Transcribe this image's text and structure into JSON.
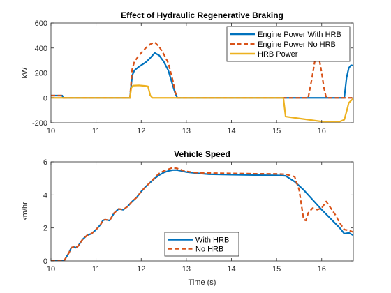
{
  "colors": {
    "blue": "#0072BD",
    "orange": "#D95319",
    "yellow": "#EDB120",
    "axis": "#262626"
  },
  "chart_data": [
    {
      "type": "line",
      "title": "Effect of Hydraulic Regenerative Braking",
      "xlabel": "",
      "ylabel": "kW",
      "xlim": [
        10,
        16.7
      ],
      "ylim": [
        -200,
        600
      ],
      "xticks": [
        10,
        11,
        12,
        13,
        14,
        15,
        16
      ],
      "yticks": [
        -200,
        0,
        200,
        400,
        600
      ],
      "legend_position": "top-right",
      "series": [
        {
          "name": "Engine Power With HRB",
          "color": "#0072BD",
          "style": "solid",
          "x": [
            10,
            10.25,
            10.27,
            11.75,
            11.8,
            11.85,
            11.95,
            12.1,
            12.2,
            12.3,
            12.4,
            12.5,
            12.6,
            12.7,
            12.75,
            12.8,
            15.1,
            16.5,
            16.55,
            16.6,
            16.65,
            16.7
          ],
          "y": [
            18,
            18,
            0,
            0,
            180,
            220,
            250,
            285,
            320,
            360,
            340,
            290,
            220,
            100,
            40,
            0,
            0,
            0,
            160,
            240,
            262,
            258
          ]
        },
        {
          "name": "Engine Power No HRB",
          "color": "#D95319",
          "style": "dashed",
          "x": [
            10,
            10.25,
            10.27,
            11.75,
            11.8,
            11.85,
            11.95,
            12.1,
            12.2,
            12.3,
            12.4,
            12.5,
            12.6,
            12.7,
            12.75,
            12.8,
            15.7,
            15.78,
            15.85,
            15.9,
            15.95,
            16.0,
            16.05,
            16.1,
            16.7
          ],
          "y": [
            18,
            18,
            0,
            0,
            230,
            290,
            340,
            400,
            430,
            445,
            410,
            350,
            280,
            140,
            50,
            0,
            0,
            150,
            300,
            360,
            300,
            200,
            80,
            0,
            0
          ]
        },
        {
          "name": "HRB Power",
          "color": "#EDB120",
          "style": "solid",
          "x": [
            10,
            11.75,
            11.78,
            11.82,
            11.95,
            12.1,
            12.15,
            12.2,
            12.25,
            15.15,
            15.2,
            15.6,
            16.0,
            16.4,
            16.5,
            16.55,
            16.6,
            16.7
          ],
          "y": [
            0,
            0,
            80,
            98,
            100,
            95,
            92,
            20,
            0,
            0,
            -150,
            -170,
            -190,
            -190,
            -175,
            -110,
            -40,
            -5
          ]
        }
      ]
    },
    {
      "type": "line",
      "title": "Vehicle Speed",
      "xlabel": "Time (s)",
      "ylabel": "km/hr",
      "xlim": [
        10,
        16.7
      ],
      "ylim": [
        0,
        6
      ],
      "xticks": [
        10,
        11,
        12,
        13,
        14,
        15,
        16
      ],
      "yticks": [
        0,
        2,
        4,
        6
      ],
      "legend_position": "bottom-center",
      "series": [
        {
          "name": "With HRB",
          "color": "#0072BD",
          "style": "solid",
          "x": [
            10,
            10.2,
            10.3,
            10.4,
            10.45,
            10.5,
            10.55,
            10.6,
            10.7,
            10.8,
            10.9,
            11.0,
            11.1,
            11.15,
            11.2,
            11.3,
            11.4,
            11.5,
            11.6,
            11.7,
            11.8,
            11.9,
            12.0,
            12.1,
            12.2,
            12.3,
            12.4,
            12.5,
            12.6,
            12.7,
            12.8,
            12.9,
            13.0,
            13.2,
            13.5,
            14.0,
            14.5,
            15.0,
            15.2,
            15.4,
            15.6,
            15.8,
            16.0,
            16.2,
            16.4,
            16.5,
            16.6,
            16.7
          ],
          "y": [
            0,
            0,
            0.05,
            0.5,
            0.8,
            0.85,
            0.8,
            0.9,
            1.3,
            1.55,
            1.65,
            1.9,
            2.2,
            2.45,
            2.5,
            2.45,
            2.9,
            3.15,
            3.1,
            3.3,
            3.6,
            3.85,
            4.2,
            4.5,
            4.75,
            5.0,
            5.2,
            5.35,
            5.45,
            5.5,
            5.5,
            5.45,
            5.38,
            5.32,
            5.25,
            5.22,
            5.2,
            5.18,
            5.15,
            4.8,
            4.3,
            3.7,
            3.1,
            2.55,
            2.0,
            1.65,
            1.7,
            1.55
          ]
        },
        {
          "name": "No HRB",
          "color": "#D95319",
          "style": "dashed",
          "x": [
            10,
            10.2,
            10.3,
            10.4,
            10.45,
            10.5,
            10.55,
            10.6,
            10.7,
            10.8,
            10.9,
            11.0,
            11.1,
            11.15,
            11.2,
            11.3,
            11.4,
            11.5,
            11.6,
            11.7,
            11.8,
            11.9,
            12.0,
            12.1,
            12.2,
            12.3,
            12.4,
            12.5,
            12.6,
            12.7,
            12.8,
            12.9,
            13.0,
            13.2,
            13.5,
            14.0,
            14.5,
            15.0,
            15.2,
            15.4,
            15.5,
            15.6,
            15.65,
            15.7,
            15.8,
            15.9,
            16.0,
            16.1,
            16.2,
            16.3,
            16.4,
            16.5,
            16.6,
            16.7
          ],
          "y": [
            0,
            0,
            0.05,
            0.5,
            0.8,
            0.85,
            0.8,
            0.9,
            1.3,
            1.55,
            1.65,
            1.9,
            2.2,
            2.45,
            2.5,
            2.45,
            2.9,
            3.15,
            3.1,
            3.3,
            3.6,
            3.85,
            4.2,
            4.5,
            4.75,
            5.05,
            5.3,
            5.45,
            5.55,
            5.65,
            5.6,
            5.5,
            5.42,
            5.35,
            5.32,
            5.3,
            5.28,
            5.27,
            5.25,
            5.1,
            4.3,
            2.5,
            2.45,
            2.9,
            3.2,
            3.1,
            3.2,
            3.6,
            3.2,
            2.8,
            2.3,
            1.9,
            1.85,
            1.75
          ]
        }
      ]
    }
  ]
}
